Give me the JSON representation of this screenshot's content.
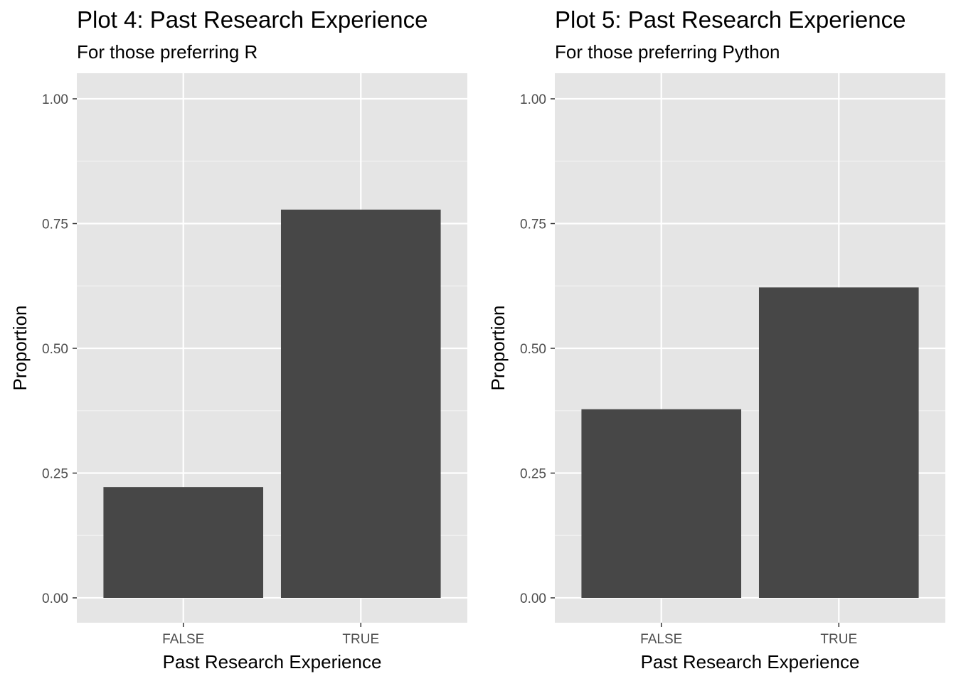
{
  "chart_data": [
    {
      "type": "bar",
      "title": "Plot 4: Past Research Experience",
      "subtitle": "For those preferring R",
      "xlabel": "Past Research Experience",
      "ylabel": "Proportion",
      "categories": [
        "FALSE",
        "TRUE"
      ],
      "values": [
        0.222,
        0.778
      ],
      "ylim": [
        0,
        1.05
      ],
      "yticks": [
        "0.00",
        "0.25",
        "0.50",
        "0.75",
        "1.00"
      ],
      "grid": true,
      "panel_color": "#e5e5e5",
      "bar_color": "#474747"
    },
    {
      "type": "bar",
      "title": "Plot 5: Past Research Experience",
      "subtitle": "For those preferring Python",
      "xlabel": "Past Research Experience",
      "ylabel": "Proportion",
      "categories": [
        "FALSE",
        "TRUE"
      ],
      "values": [
        0.378,
        0.622
      ],
      "ylim": [
        0,
        1.05
      ],
      "yticks": [
        "0.00",
        "0.25",
        "0.50",
        "0.75",
        "1.00"
      ],
      "grid": true,
      "panel_color": "#e5e5e5",
      "bar_color": "#474747"
    }
  ]
}
